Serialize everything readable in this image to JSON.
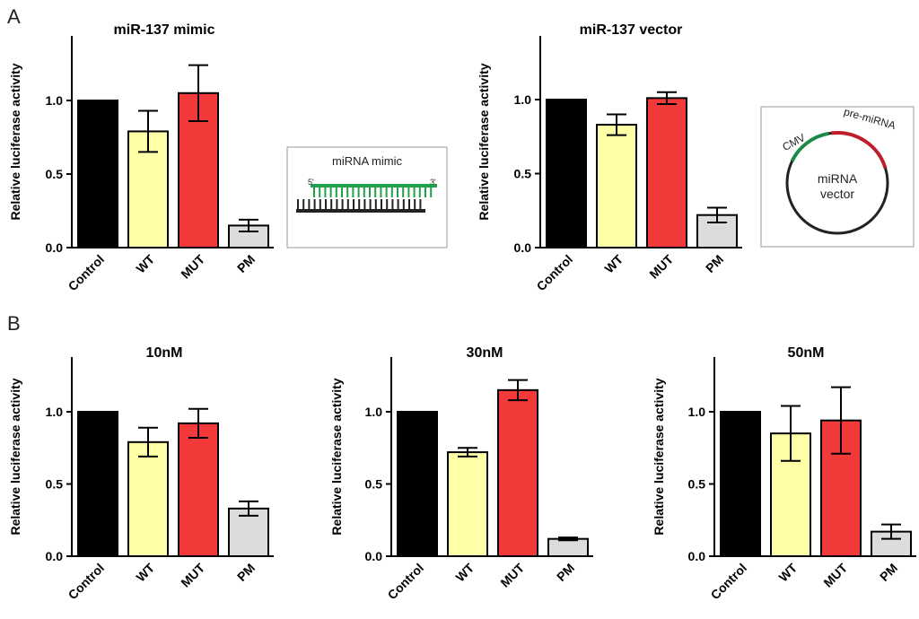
{
  "panel_labels": [
    "A",
    "B"
  ],
  "colors": {
    "control": "#000000",
    "wt": "#ffffa8",
    "mut": "#f23a3a",
    "pm": "#dcdcdc",
    "mimic_strand": "#1ea04a",
    "target_strand": "#222222",
    "cmv_arc": "#1e8a4a",
    "premirna_arc": "#c01c2c",
    "circle": "#222222"
  },
  "chart_data": [
    {
      "type": "bar",
      "title": "miR-137 mimic",
      "ylabel": "Relative luciferase activity",
      "categories": [
        "Control",
        "WT",
        "MUT",
        "PM"
      ],
      "values": [
        1.0,
        0.79,
        1.05,
        0.15
      ],
      "errors": [
        0,
        0.14,
        0.19,
        0.04
      ],
      "ylim": [
        0,
        1.4
      ],
      "yticks": [
        "0.0",
        "0.5",
        "1.0"
      ]
    },
    {
      "type": "bar",
      "title": "miR-137 vector",
      "ylabel": "Relative luciferase activity",
      "categories": [
        "Control",
        "WT",
        "MUT",
        "PM"
      ],
      "values": [
        1.0,
        0.83,
        1.01,
        0.22
      ],
      "errors": [
        0,
        0.07,
        0.04,
        0.05
      ],
      "ylim": [
        0,
        1.4
      ],
      "yticks": [
        "0.0",
        "0.5",
        "1.0"
      ]
    },
    {
      "type": "bar",
      "title": "10nM",
      "ylabel": "Relative luciferase activity",
      "categories": [
        "Control",
        "WT",
        "MUT",
        "PM"
      ],
      "values": [
        1.0,
        0.79,
        0.92,
        0.33
      ],
      "errors": [
        0,
        0.1,
        0.1,
        0.05
      ],
      "ylim": [
        0,
        1.4
      ],
      "yticks": [
        "0.0",
        "0.5",
        "1.0"
      ]
    },
    {
      "type": "bar",
      "title": "30nM",
      "ylabel": "Relative luciferase activity",
      "categories": [
        "Control",
        "WT",
        "MUT",
        "PM"
      ],
      "values": [
        1.0,
        0.72,
        1.15,
        0.12
      ],
      "errors": [
        0,
        0.03,
        0.07,
        0.01
      ],
      "ylim": [
        0,
        1.4
      ],
      "yticks": [
        "0.0",
        "0.5",
        "1.0"
      ]
    },
    {
      "type": "bar",
      "title": "50nM",
      "ylabel": "Relative luciferase activity",
      "categories": [
        "Control",
        "WT",
        "MUT",
        "PM"
      ],
      "values": [
        1.0,
        0.85,
        0.94,
        0.17
      ],
      "errors": [
        0,
        0.19,
        0.23,
        0.05
      ],
      "ylim": [
        0,
        1.4
      ],
      "yticks": [
        "0.0",
        "0.5",
        "1.0"
      ]
    }
  ],
  "diagrams": {
    "mimic": {
      "label": "miRNA mimic",
      "end5": "5'",
      "end3": "3'"
    },
    "vector": {
      "cmv": "CMV",
      "premirna": "pre-miRNA",
      "center_line1": "miRNA",
      "center_line2": "vector"
    }
  }
}
